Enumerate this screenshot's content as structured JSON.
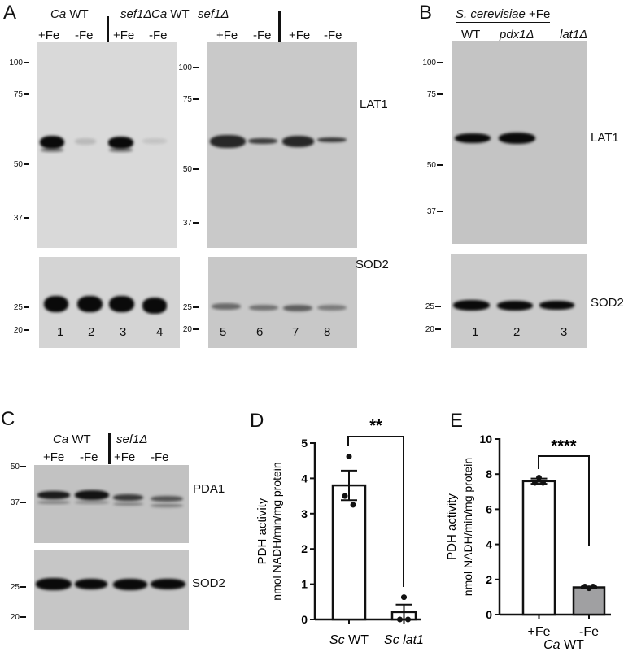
{
  "panels": {
    "A": {
      "label": "A",
      "left": {
        "strain1_italic": "Ca",
        "strain1": " WT",
        "strain2": "sef1Δ",
        "conditions": [
          "+Fe",
          "-Fe",
          "+Fe",
          "-Fe"
        ],
        "lanes": [
          "1",
          "2",
          "3",
          "4"
        ],
        "markers_top": [
          "100",
          "75",
          "50",
          "37"
        ],
        "markers_bottom": [
          "25",
          "20"
        ]
      },
      "right": {
        "strain1_italic": "Ca",
        "strain1": " WT",
        "strain2": "sef1Δ",
        "conditions": [
          "+Fe",
          "-Fe",
          "+Fe",
          "-Fe"
        ],
        "lanes": [
          "5",
          "6",
          "7",
          "8"
        ],
        "markers_top": [
          "100",
          "75",
          "50",
          "37"
        ],
        "markers_bottom": [
          "25",
          "20"
        ]
      },
      "proteins": [
        "LAT1",
        "SOD2"
      ]
    },
    "B": {
      "label": "B",
      "title_italic": "S. cerevisiae",
      "title": " +Fe",
      "strains": [
        "WT",
        "pdx1Δ",
        "lat1Δ"
      ],
      "lanes": [
        "1",
        "2",
        "3"
      ],
      "markers_top": [
        "100",
        "75",
        "50",
        "37"
      ],
      "markers_bottom": [
        "25",
        "20"
      ],
      "proteins": [
        "LAT1",
        "SOD2"
      ]
    },
    "C": {
      "label": "C",
      "strain1_italic": "Ca",
      "strain1": " WT",
      "strain2": "sef1Δ",
      "conditions": [
        "+Fe",
        "-Fe",
        "+Fe",
        "-Fe"
      ],
      "markers_top": [
        "50",
        "37"
      ],
      "markers_bottom": [
        "25",
        "20"
      ],
      "proteins": [
        "PDA1",
        "SOD2"
      ]
    },
    "D": {
      "label": "D"
    },
    "E": {
      "label": "E"
    }
  },
  "chart_data": [
    {
      "type": "bar",
      "panel": "D",
      "categories": [
        {
          "italic": "Sc",
          "text": " WT"
        },
        {
          "italic": "Sc lat1",
          "text": ""
        }
      ],
      "values": [
        3.8,
        0.21
      ],
      "sem": [
        0.42,
        0.21
      ],
      "points": [
        [
          4.62,
          3.5,
          3.25
        ],
        [
          0.63,
          0.0,
          0.0
        ]
      ],
      "bar_colors": [
        "#ffffff",
        "#ffffff"
      ],
      "ylabel": "PDH activity",
      "ylabel2": "nmol NADH/min/mg protein",
      "ylim": [
        0,
        5
      ],
      "yticks": [
        "0",
        "1",
        "2",
        "3",
        "4",
        "5"
      ],
      "significance": "**"
    },
    {
      "type": "bar",
      "panel": "E",
      "categories": [
        {
          "italic": "",
          "text": "+Fe"
        },
        {
          "italic": "",
          "text": "-Fe"
        }
      ],
      "group_label_italic": "Ca",
      "group_label": " WT",
      "values": [
        7.6,
        1.55
      ],
      "sem": [
        0.15,
        0.05
      ],
      "points": [
        [
          7.8,
          7.5,
          7.5
        ],
        [
          1.5,
          1.6,
          1.6
        ]
      ],
      "bar_colors": [
        "#ffffff",
        "#a0a0a2"
      ],
      "ylabel": "PDH activity",
      "ylabel2": "nmol NADH/min/mg protein",
      "ylim": [
        0,
        10
      ],
      "yticks": [
        "0",
        "2",
        "4",
        "6",
        "8",
        "10"
      ],
      "significance": "****"
    }
  ]
}
